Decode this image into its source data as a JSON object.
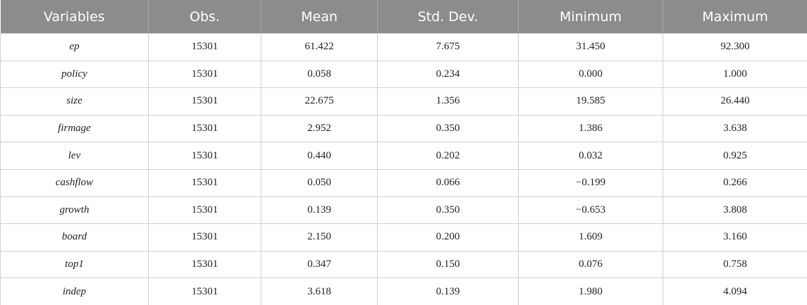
{
  "table": {
    "header": [
      "Variables",
      "Obs.",
      "Mean",
      "Std. Dev.",
      "Minimum",
      "Maximum"
    ],
    "rows": [
      [
        "ep",
        "15301",
        "61.422",
        "7.675",
        "31.450",
        "92.300"
      ],
      [
        "policy",
        "15301",
        "0.058",
        "0.234",
        "0.000",
        "1.000"
      ],
      [
        "size",
        "15301",
        "22.675",
        "1.356",
        "19.585",
        "26.440"
      ],
      [
        "firmage",
        "15301",
        "2.952",
        "0.350",
        "1.386",
        "3.638"
      ],
      [
        "lev",
        "15301",
        "0.440",
        "0.202",
        "0.032",
        "0.925"
      ],
      [
        "cashflow",
        "15301",
        "0.050",
        "0.066",
        "−0.199",
        "0.266"
      ],
      [
        "growth",
        "15301",
        "0.139",
        "0.350",
        "−0.653",
        "3.808"
      ],
      [
        "board",
        "15301",
        "2.150",
        "0.200",
        "1.609",
        "3.160"
      ],
      [
        "top1",
        "15301",
        "0.347",
        "0.150",
        "0.076",
        "0.758"
      ],
      [
        "indep",
        "15301",
        "3.618",
        "0.139",
        "1.980",
        "4.094"
      ]
    ]
  }
}
